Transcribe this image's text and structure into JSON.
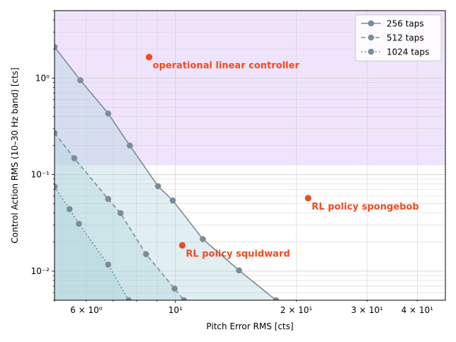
{
  "chart_data": {
    "type": "line",
    "title": "",
    "xlabel": "Pitch Error RMS [cts]",
    "ylabel": "Control Action RMS (10–30 Hz band) [cts]",
    "xscale": "log",
    "yscale": "log",
    "xlim": [
      5,
      47
    ],
    "ylim": [
      0.005,
      5
    ],
    "grid": true,
    "legend_position": "top-right",
    "x_tick_labels": [
      {
        "value": 6,
        "label": "6 × 10⁰"
      },
      {
        "value": 10,
        "label": "10¹"
      },
      {
        "value": 20,
        "label": "2 × 10¹"
      },
      {
        "value": 30,
        "label": "3 × 10¹"
      },
      {
        "value": 40,
        "label": "4 × 10¹"
      }
    ],
    "y_tick_labels": [
      {
        "value": 0.01,
        "label": "10⁻²"
      },
      {
        "value": 0.1,
        "label": "10⁻¹"
      },
      {
        "value": 1,
        "label": "10⁰"
      }
    ],
    "series": [
      {
        "name": "256 taps",
        "dash": "solid",
        "x": [
          5.0,
          5.8,
          6.8,
          7.7,
          9.05,
          9.85,
          11.7,
          14.4,
          17.8
        ],
        "y": [
          2.1,
          0.95,
          0.43,
          0.2,
          0.076,
          0.054,
          0.0215,
          0.0102,
          0.005
        ]
      },
      {
        "name": "512 taps",
        "dash": "dashed",
        "x": [
          5.0,
          5.6,
          6.8,
          7.3,
          8.45,
          9.95,
          10.5
        ],
        "y": [
          0.27,
          0.148,
          0.056,
          0.04,
          0.015,
          0.0066,
          0.005
        ]
      },
      {
        "name": "1024 taps",
        "dash": "dotted",
        "x": [
          5.0,
          5.45,
          5.75,
          6.8,
          7.65
        ],
        "y": [
          0.075,
          0.044,
          0.031,
          0.0117,
          0.005
        ]
      }
    ],
    "points": [
      {
        "label": "operational linear controller",
        "x": 8.6,
        "y": 1.65
      },
      {
        "label": "RL policy spongebob",
        "x": 21.4,
        "y": 0.057
      },
      {
        "label": "RL policy squidward",
        "x": 10.4,
        "y": 0.0185
      }
    ],
    "shaded_band": {
      "y_from": 0.125,
      "y_to": 5,
      "color": "#efe4fb"
    },
    "colors": {
      "series": "#7a8c9a",
      "points": "#f24a1f",
      "region_fill": "#a9d0db",
      "grid": "#d4d4d4"
    }
  }
}
